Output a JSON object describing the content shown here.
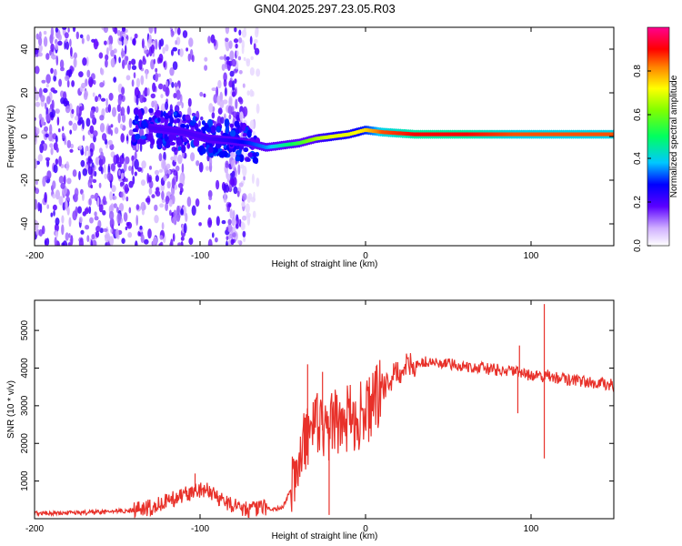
{
  "title": "GN04.2025.297.23.05.R03",
  "chart_data": [
    {
      "type": "heatmap",
      "name": "spectrogram",
      "xlabel": "Height of straight line (km)",
      "ylabel": "Frequency (Hz)",
      "xlim": [
        -200,
        150
      ],
      "ylim": [
        -50,
        50
      ],
      "xticks": [
        -200,
        -100,
        0,
        100
      ],
      "yticks": [
        -40,
        -20,
        0,
        20,
        40
      ],
      "colorbar": {
        "label": "Normalized spectral amplitude",
        "range": [
          0,
          1
        ],
        "ticks": [
          "0.0",
          "0.2",
          "0.4",
          "0.6",
          "0.8"
        ],
        "tick_values": [
          0.0,
          0.2,
          0.4,
          0.6,
          0.8
        ]
      },
      "carrier_track": {
        "x": [
          -130,
          -110,
          -95,
          -80,
          -70,
          -60,
          -50,
          -40,
          -30,
          -20,
          -10,
          0,
          10,
          30,
          60,
          90,
          110,
          150
        ],
        "freq_hz": [
          4,
          2,
          -1,
          -2,
          -3,
          -5,
          -4,
          -3,
          -1,
          0,
          1,
          3,
          2,
          1,
          1,
          1,
          1,
          1
        ],
        "amplitude": [
          0.2,
          0.2,
          0.2,
          0.25,
          0.3,
          0.35,
          0.45,
          0.55,
          0.65,
          0.7,
          0.7,
          0.75,
          0.85,
          0.9,
          0.9,
          0.85,
          0.85,
          0.85
        ]
      }
    },
    {
      "type": "line",
      "name": "snr",
      "xlabel": "Height of straight line (km)",
      "ylabel": "SNR (10 * v/v)",
      "xlim": [
        -200,
        150
      ],
      "ylim": [
        0,
        5800
      ],
      "xticks": [
        -200,
        -100,
        0,
        100
      ],
      "yticks": [
        1000,
        2000,
        3000,
        4000,
        5000
      ],
      "color": "#e8312a",
      "series": [
        {
          "name": "SNR",
          "x": [
            -200,
            -180,
            -160,
            -140,
            -130,
            -120,
            -110,
            -100,
            -95,
            -90,
            -85,
            -80,
            -75,
            -70,
            -65,
            -60,
            -55,
            -50,
            -45,
            -40,
            -35,
            -32,
            -30,
            -25,
            -20,
            -15,
            -10,
            -5,
            0,
            5,
            10,
            15,
            20,
            25,
            30,
            35,
            40,
            45,
            50,
            60,
            70,
            80,
            90,
            95,
            100,
            105,
            108,
            110,
            115,
            120,
            130,
            140,
            150
          ],
          "y": [
            150,
            150,
            170,
            220,
            300,
            450,
            650,
            750,
            750,
            600,
            450,
            350,
            300,
            250,
            260,
            300,
            250,
            300,
            800,
            1500,
            2300,
            2800,
            2500,
            2300,
            2500,
            2600,
            2700,
            2700,
            2800,
            3100,
            3400,
            3700,
            3900,
            4050,
            4100,
            4150,
            4150,
            4120,
            4100,
            4050,
            4000,
            3950,
            3900,
            3850,
            3800,
            3800,
            3750,
            3800,
            3750,
            3700,
            3650,
            3600,
            3550
          ]
        }
      ],
      "annotations": {
        "spikes": [
          {
            "x": -103,
            "y": 1200
          },
          {
            "x": -35,
            "y": 4100
          },
          {
            "x": -26,
            "y": 3900
          },
          {
            "x": 93,
            "y": 4600
          },
          {
            "x": 108,
            "y": 5700
          }
        ],
        "dips": [
          {
            "x": -22,
            "y": 100
          },
          {
            "x": 92,
            "y": 2800
          },
          {
            "x": 108,
            "y": 1600
          }
        ]
      }
    }
  ]
}
